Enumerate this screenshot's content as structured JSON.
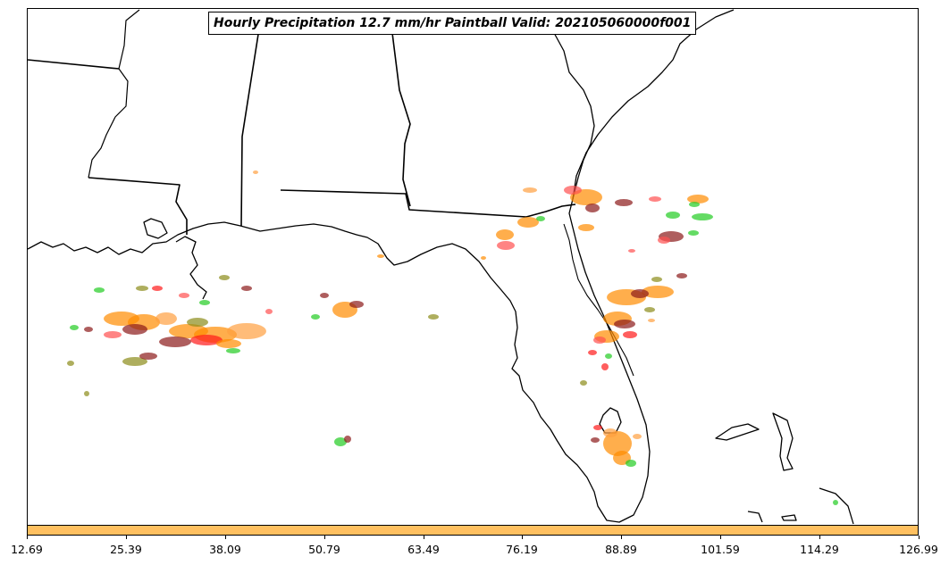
{
  "title": "Hourly Precipitation 12.7 mm/hr Paintball Valid: 202105060000f001",
  "colorbar": {
    "color": "#ffc060",
    "ticks": [
      "12.69",
      "25.39",
      "38.09",
      "50.79",
      "63.49",
      "76.19",
      "88.89",
      "101.59",
      "114.29",
      "126.99"
    ]
  },
  "member_colors": [
    "#ff1a1a",
    "#ff8c00",
    "#22cc22",
    "#8b1a1a",
    "#8b8b1a",
    "#ff5050",
    "#ffa040"
  ]
}
